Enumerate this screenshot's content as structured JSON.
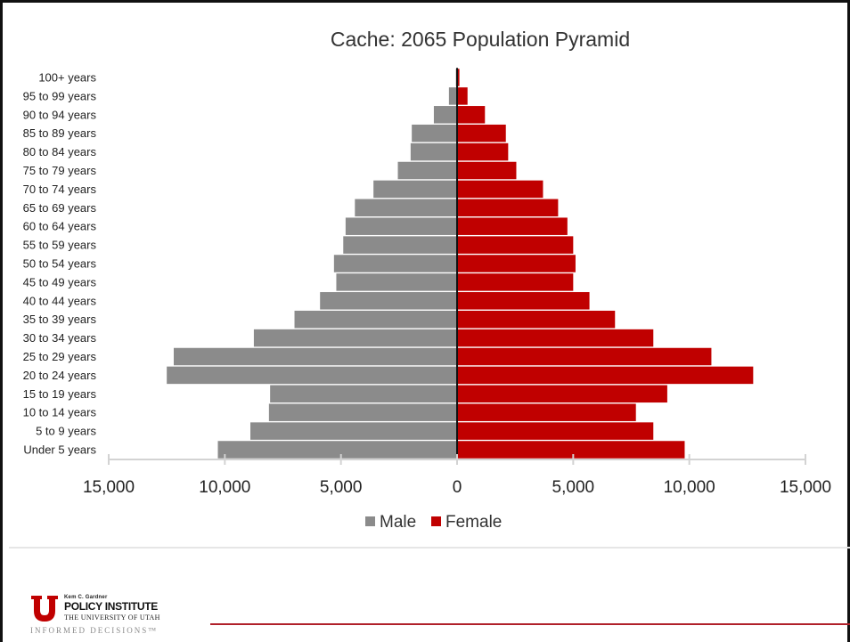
{
  "colors": {
    "male": "#8b8b8b",
    "female": "#c00000",
    "axis": "#d3d3d3",
    "center_line": "#111111",
    "brand_red": "#c00000"
  },
  "chart_data": {
    "type": "bar",
    "orientation": "horizontal",
    "title": "Cache: 2065 Population Pyramid",
    "categories": [
      "Under 5 years",
      "5 to 9 years",
      "10 to 14 years",
      "15 to 19 years",
      "20 to 24 years",
      "25 to 29 years",
      "30 to 34 years",
      "35 to 39 years",
      "40 to 44 years",
      "45 to 49 years",
      "50 to 54 years",
      "55 to 59 years",
      "60 to 64 years",
      "65 to 69 years",
      "70 to 74 years",
      "75 to 79 years",
      "80 to 84 years",
      "85 to 89 years",
      "90 to 94 years",
      "95 to 99 years",
      "100+ years"
    ],
    "series": [
      {
        "name": "Male",
        "values": [
          10300,
          8900,
          8100,
          8050,
          12500,
          12200,
          8750,
          7000,
          5900,
          5200,
          5300,
          4900,
          4800,
          4400,
          3600,
          2550,
          2000,
          1950,
          1000,
          350,
          50
        ]
      },
      {
        "name": "Female",
        "values": [
          9800,
          8450,
          7700,
          9050,
          12750,
          10950,
          8450,
          6800,
          5700,
          5000,
          5100,
          5000,
          4750,
          4350,
          3700,
          2550,
          2200,
          2100,
          1200,
          450,
          100
        ]
      }
    ],
    "x_ticks": [
      "15,000",
      "10,000",
      "5,000",
      "0",
      "5,000",
      "10,000",
      "15,000"
    ],
    "xlim": [
      -15000,
      15000
    ],
    "legend": {
      "position": "bottom",
      "items": [
        "Male",
        "Female"
      ]
    },
    "grid": false
  },
  "footer": {
    "logo_top": "Kem C. Gardner",
    "logo_main": "POLICY INSTITUTE",
    "logo_sub": "THE UNIVERSITY OF UTAH",
    "tagline": "INFORMED DECISIONS™"
  }
}
